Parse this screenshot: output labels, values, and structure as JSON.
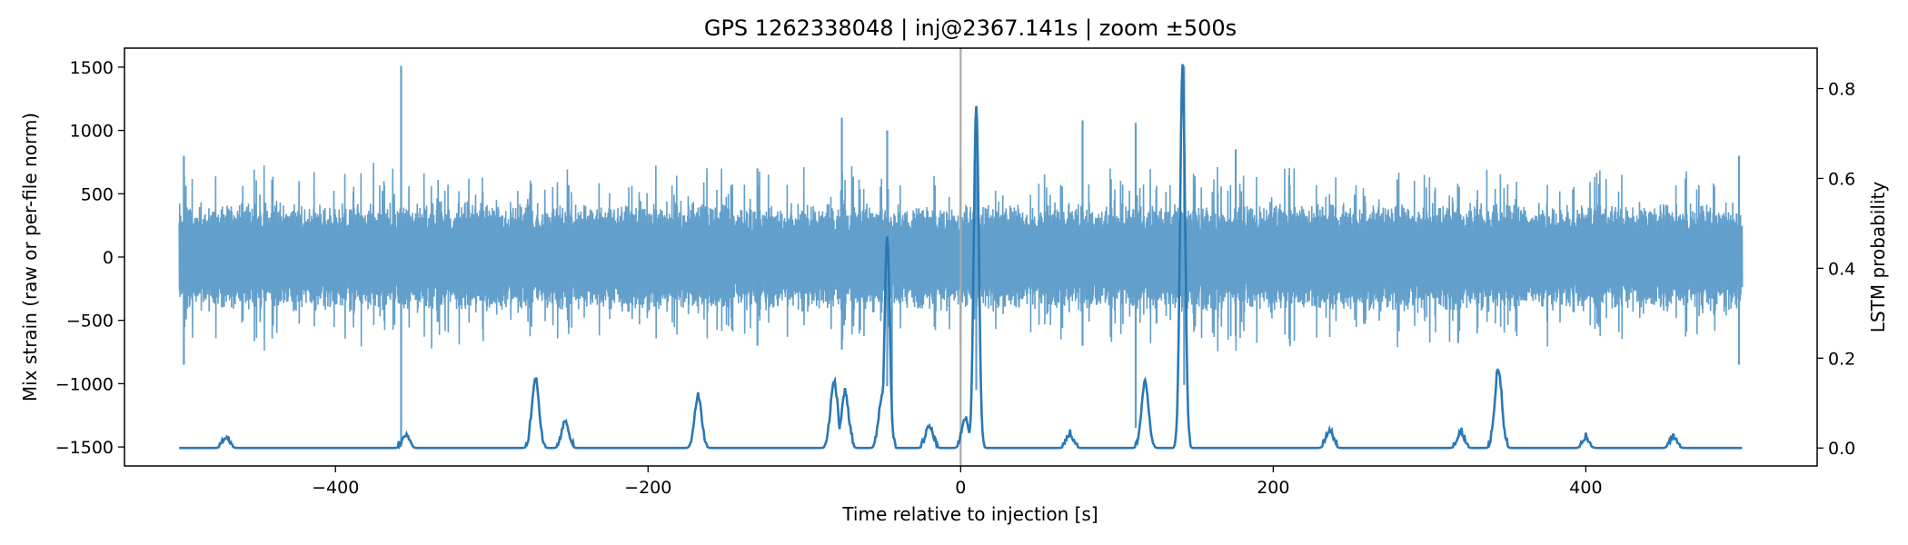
{
  "chart_data": {
    "type": "line",
    "title": "GPS 1262338048 | inj@2367.141s | zoom ±500s",
    "xlabel": "Time relative to injection [s]",
    "ylabel": "Mix strain (raw or per-file norm)",
    "y2label": "LSTM probability",
    "xlim": [
      -535,
      548
    ],
    "ylim": [
      -1650,
      1650
    ],
    "y2lim": [
      -0.04,
      0.89
    ],
    "xticks": [
      -400,
      -200,
      0,
      200,
      400
    ],
    "xtick_labels": [
      "−400",
      "−200",
      "0",
      "200",
      "400"
    ],
    "yticks": [
      1500,
      1000,
      500,
      0,
      -500,
      -1000,
      -1500
    ],
    "ytick_labels": [
      "1500",
      "1000",
      "500",
      "0",
      "−500",
      "−1000",
      "−1500"
    ],
    "y2ticks": [
      0.8,
      0.6,
      0.4,
      0.2,
      0.0
    ],
    "y2tick_labels": [
      "0.8",
      "0.6",
      "0.4",
      "0.2",
      "0.0"
    ],
    "grid": false,
    "injection_marker_x": 0,
    "series": [
      {
        "axis": "left",
        "color": "#629fcb",
        "style": "noise-band",
        "x_range": [
          -500,
          500
        ],
        "typical_amplitude": 450,
        "max_amplitude": 750,
        "spikes": [
          {
            "x": -497,
            "high": 800,
            "low": -850
          },
          {
            "x": -358,
            "high": 1510,
            "low": -1500
          },
          {
            "x": -130,
            "high": 700,
            "low": -700
          },
          {
            "x": -76,
            "high": 1100,
            "low": -730
          },
          {
            "x": -47,
            "high": 1000,
            "low": -1020
          },
          {
            "x": -44,
            "high": 50,
            "low": -1300
          },
          {
            "x": 0,
            "high": 720,
            "low": -700
          },
          {
            "x": 10,
            "high": 1160,
            "low": -1050
          },
          {
            "x": 78,
            "high": 1080,
            "low": -700
          },
          {
            "x": 112,
            "high": 1060,
            "low": -1350
          },
          {
            "x": 143,
            "high": 1510,
            "low": -1010
          },
          {
            "x": 176,
            "high": 850,
            "low": -620
          },
          {
            "x": 498,
            "high": 800,
            "low": -850
          }
        ]
      },
      {
        "axis": "right",
        "color": "#2a78b5",
        "style": "line",
        "baseline": 0.0,
        "x_range": [
          -500,
          500
        ],
        "peaks": [
          {
            "x": -470,
            "y": 0.02
          },
          {
            "x": -355,
            "y": 0.025
          },
          {
            "x": -272,
            "y": 0.15
          },
          {
            "x": -253,
            "y": 0.055
          },
          {
            "x": -168,
            "y": 0.11
          },
          {
            "x": -81,
            "y": 0.145
          },
          {
            "x": -74,
            "y": 0.12
          },
          {
            "x": -50,
            "y": 0.115
          },
          {
            "x": -47,
            "y": 0.47
          },
          {
            "x": -20,
            "y": 0.045
          },
          {
            "x": 3,
            "y": 0.06
          },
          {
            "x": 10,
            "y": 0.76
          },
          {
            "x": 70,
            "y": 0.025
          },
          {
            "x": 118,
            "y": 0.145
          },
          {
            "x": 142,
            "y": 0.85
          },
          {
            "x": 236,
            "y": 0.035
          },
          {
            "x": 320,
            "y": 0.03
          },
          {
            "x": 344,
            "y": 0.17
          },
          {
            "x": 400,
            "y": 0.015
          },
          {
            "x": 456,
            "y": 0.02
          }
        ]
      }
    ]
  }
}
